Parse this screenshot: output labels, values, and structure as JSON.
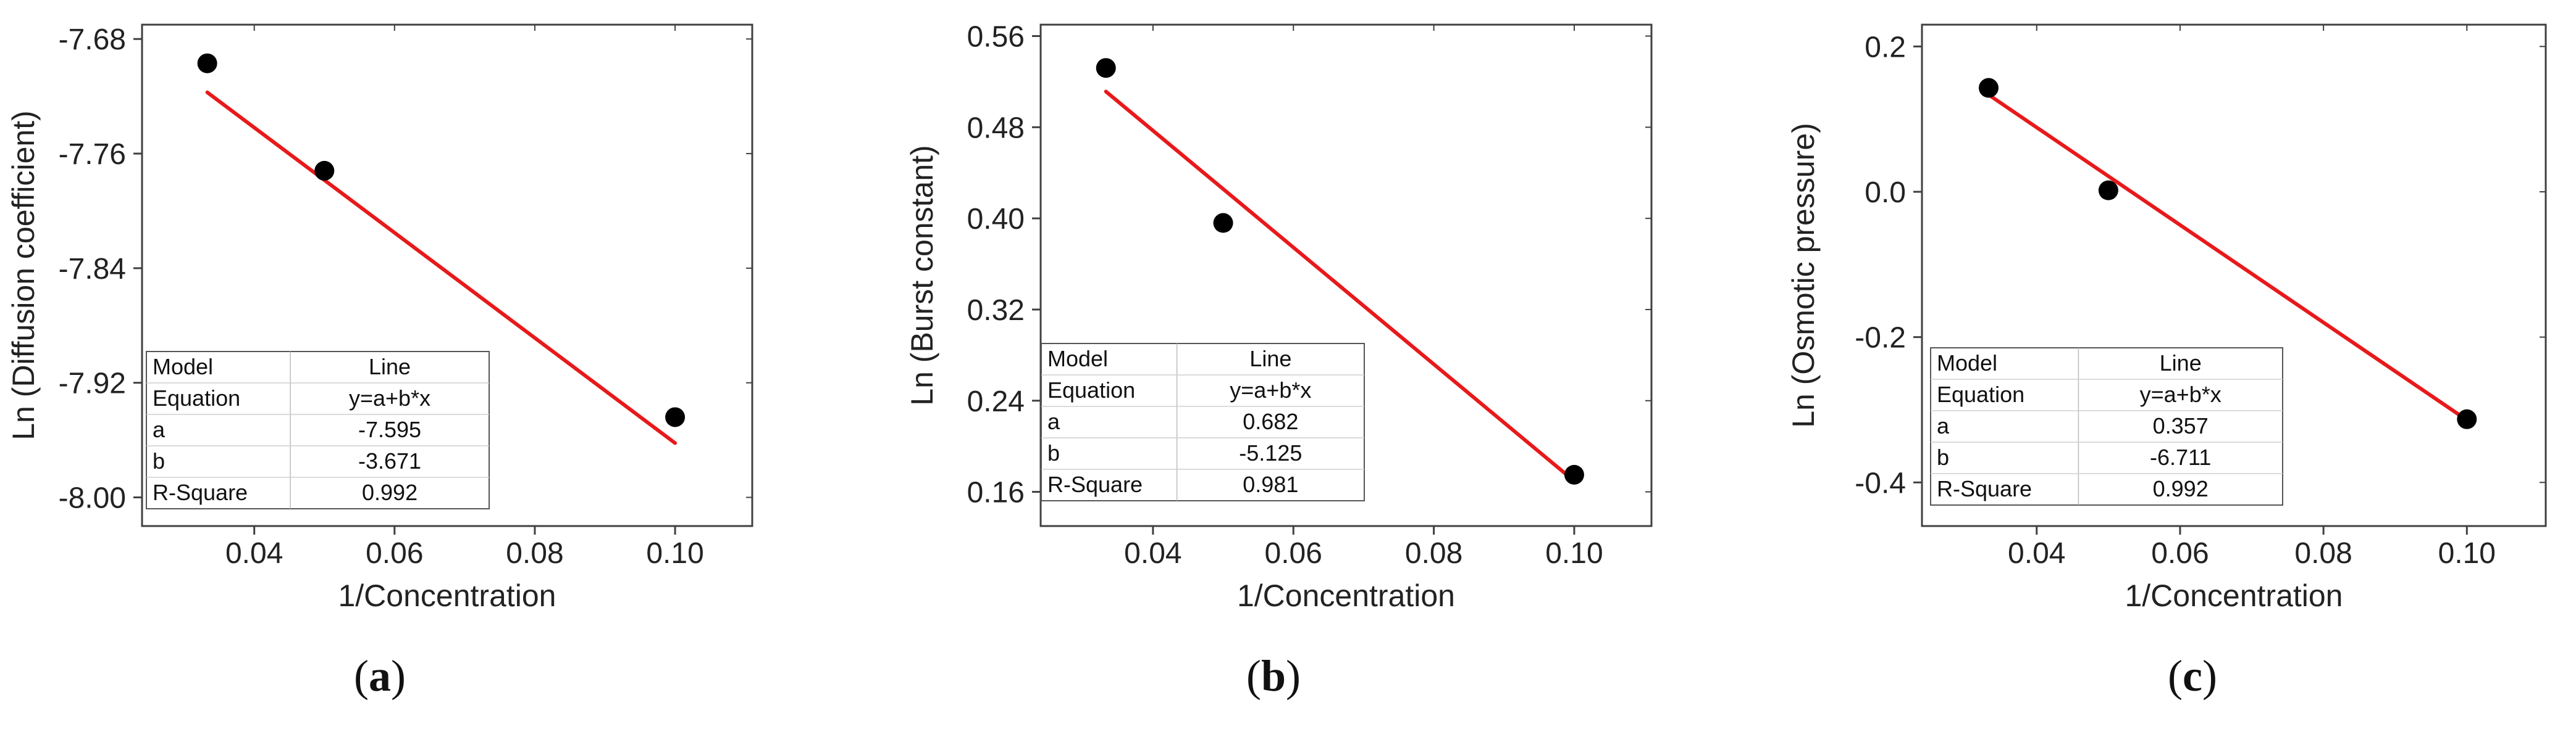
{
  "style": {
    "point_color": "#000000",
    "fit_color": "#e8191b",
    "frame_color": "#404040",
    "grid_color": "#c8c8c8"
  },
  "chart_data": [
    {
      "type": "scatter",
      "caption": "(a)",
      "caption_letter": "a",
      "xlabel": "1/Concentration",
      "ylabel": "Ln (Diffusion coefficient)",
      "xlim": [
        0.024,
        0.111
      ],
      "ylim": [
        -8.02,
        -7.67
      ],
      "xticks": [
        0.04,
        0.06,
        0.08,
        0.1
      ],
      "xtick_labels": [
        "0.04",
        "0.06",
        "0.08",
        "0.10"
      ],
      "yticks": [
        -8.0,
        -7.92,
        -7.84,
        -7.76,
        -7.68
      ],
      "ytick_labels": [
        "-8.00",
        "-7.92",
        "-7.84",
        "-7.76",
        "-7.68"
      ],
      "points": {
        "x": [
          0.0333,
          0.05,
          0.1
        ],
        "y": [
          -7.697,
          -7.772,
          -7.944
        ]
      },
      "fit": {
        "a": -7.595,
        "b": -3.671
      },
      "fit_table": [
        [
          "Model",
          "Line"
        ],
        [
          "Equation",
          "y=a+b*x"
        ],
        [
          "a",
          "-7.595"
        ],
        [
          "b",
          "-3.671"
        ],
        [
          "R-Square",
          "0.992"
        ]
      ]
    },
    {
      "type": "scatter",
      "caption": "(b)",
      "caption_letter": "b",
      "xlabel": "1/Concentration",
      "ylabel": "Ln (Burst constant)",
      "xlim": [
        0.024,
        0.111
      ],
      "ylim": [
        0.13,
        0.57
      ],
      "xticks": [
        0.04,
        0.06,
        0.08,
        0.1
      ],
      "xtick_labels": [
        "0.04",
        "0.06",
        "0.08",
        "0.10"
      ],
      "yticks": [
        0.16,
        0.24,
        0.32,
        0.4,
        0.48,
        0.56
      ],
      "ytick_labels": [
        "0.16",
        "0.24",
        "0.32",
        "0.40",
        "0.48",
        "0.56"
      ],
      "points": {
        "x": [
          0.0333,
          0.05,
          0.1
        ],
        "y": [
          0.532,
          0.396,
          0.175
        ]
      },
      "fit": {
        "a": 0.682,
        "b": -5.125
      },
      "fit_table": [
        [
          "Model",
          "Line"
        ],
        [
          "Equation",
          "y=a+b*x"
        ],
        [
          "a",
          "0.682"
        ],
        [
          "b",
          "-5.125"
        ],
        [
          "R-Square",
          "0.981"
        ]
      ]
    },
    {
      "type": "scatter",
      "caption": "(c)",
      "caption_letter": "c",
      "xlabel": "1/Concentration",
      "ylabel": "Ln (Osmotic pressure)",
      "xlim": [
        0.024,
        0.111
      ],
      "ylim": [
        -0.46,
        0.23
      ],
      "xticks": [
        0.04,
        0.06,
        0.08,
        0.1
      ],
      "xtick_labels": [
        "0.04",
        "0.06",
        "0.08",
        "0.10"
      ],
      "yticks": [
        -0.4,
        -0.2,
        0.0,
        0.2
      ],
      "ytick_labels": [
        "-0.4",
        "-0.2",
        "0.0",
        "0.2"
      ],
      "points": {
        "x": [
          0.0333,
          0.05,
          0.1
        ],
        "y": [
          0.143,
          0.002,
          -0.313
        ]
      },
      "fit": {
        "a": 0.357,
        "b": -6.711
      },
      "fit_table": [
        [
          "Model",
          "Line"
        ],
        [
          "Equation",
          "y=a+b*x"
        ],
        [
          "a",
          "0.357"
        ],
        [
          "b",
          "-6.711"
        ],
        [
          "R-Square",
          "0.992"
        ]
      ]
    }
  ]
}
